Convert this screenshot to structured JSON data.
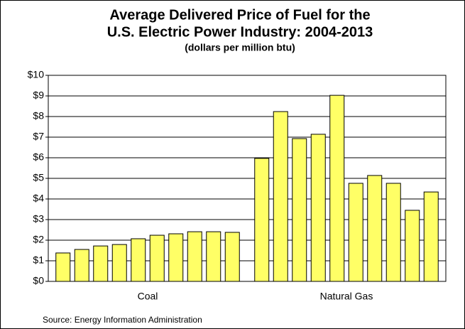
{
  "chart_data": {
    "type": "bar",
    "title": [
      "Average Delivered Price of Fuel for the",
      "U.S. Electric Power Industry: 2004-2013"
    ],
    "subtitle": "(dollars per million btu)",
    "source": "Source: Energy Information Administration",
    "categories": [
      "Coal",
      "Natural Gas"
    ],
    "color": "#ffff66",
    "series": [
      {
        "color": "#ffff66",
        "values": [
          1.38,
          5.97
        ]
      },
      {
        "color": "#ffff66",
        "values": [
          1.55,
          8.24
        ]
      },
      {
        "color": "#ffff66",
        "values": [
          1.72,
          6.93
        ]
      },
      {
        "color": "#ffff66",
        "values": [
          1.79,
          7.14
        ]
      },
      {
        "color": "#ffff66",
        "values": [
          2.07,
          9.03
        ]
      },
      {
        "color": "#ffff66",
        "values": [
          2.24,
          4.76
        ]
      },
      {
        "color": "#ffff66",
        "values": [
          2.31,
          5.14
        ]
      },
      {
        "color": "#ffff66",
        "values": [
          2.41,
          4.76
        ]
      },
      {
        "color": "#ffff66",
        "values": [
          2.41,
          3.45
        ]
      },
      {
        "color": "#ffff66",
        "values": [
          2.38,
          4.34
        ]
      }
    ],
    "ylim": [
      0,
      10
    ],
    "yticks": [
      {
        "value": 0,
        "label": "$0"
      },
      {
        "value": 1,
        "label": "$1"
      },
      {
        "value": 2,
        "label": "$2"
      },
      {
        "value": 3,
        "label": "$3"
      },
      {
        "value": 4,
        "label": "$4"
      },
      {
        "value": 5,
        "label": "$5"
      },
      {
        "value": 6,
        "label": "$6"
      },
      {
        "value": 7,
        "label": "$7"
      },
      {
        "value": 8,
        "label": "$8"
      },
      {
        "value": 9,
        "label": "$9"
      },
      {
        "value": 10,
        "label": "$10"
      }
    ],
    "grid": true
  }
}
